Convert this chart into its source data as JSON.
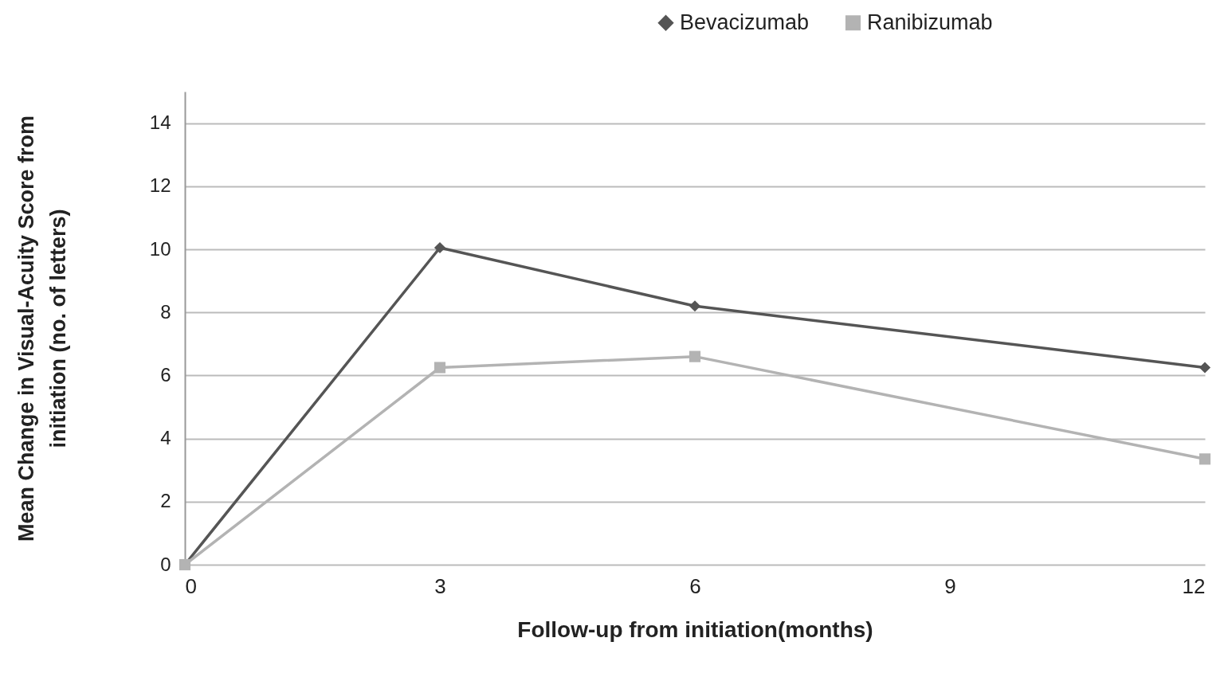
{
  "chart_data": {
    "type": "line",
    "xlabel": "Follow-up from initiation(months)",
    "ylabel": "Mean Change in Visual-Acuity Score from initiation (no. of letters)",
    "x": [
      0,
      3,
      6,
      12
    ],
    "series": [
      {
        "name": "Bevacizumab",
        "color": "#555555",
        "marker": "diamond",
        "values": [
          0,
          10.05,
          8.2,
          6.25
        ]
      },
      {
        "name": "Ranibizumab",
        "color": "#b3b3b3",
        "marker": "square",
        "values": [
          0,
          6.25,
          6.6,
          3.35
        ]
      }
    ],
    "xlim": [
      0,
      12
    ],
    "xticks": [
      0,
      3,
      6,
      9,
      12
    ],
    "ylim": [
      0,
      15
    ],
    "yticks": [
      0,
      2,
      4,
      6,
      8,
      10,
      12,
      14
    ],
    "grid": "y",
    "legend": "top right"
  }
}
